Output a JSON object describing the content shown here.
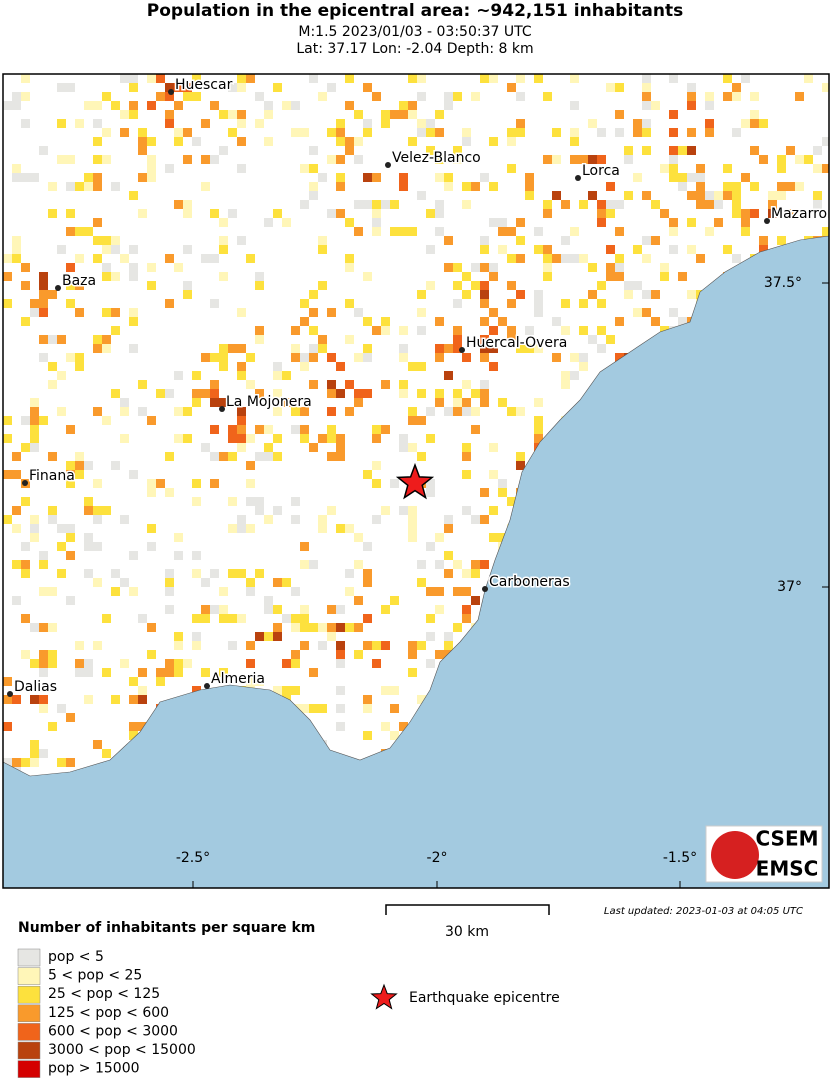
{
  "header": {
    "title": "Population in the epicentral area: ~942,151 inhabitants",
    "line1": "M:1.5 2023/01/03 - 03:50:37 UTC",
    "line2": "Lat: 37.17 Lon: -2.04 Depth: 8 km"
  },
  "map": {
    "cities": [
      "Huescar",
      "Velez-Blanco",
      "Lorca",
      "Mazarron",
      "Baza",
      "Huercal-Overa",
      "La Mojonera",
      "Finana",
      "Carboneras",
      "Dalias",
      "Almeria"
    ],
    "lat_labels": [
      "37.5°",
      "37°"
    ],
    "lon_labels": [
      "-2.5°",
      "-2°",
      "-1.5°"
    ],
    "sea_color": "#a3cae0",
    "logo": [
      "CSEM",
      "EMSC"
    ]
  },
  "scale": {
    "label": "30 km"
  },
  "updated": "Last updated: 2023-01-03 at 04:05 UTC",
  "legend": {
    "title": "Number of inhabitants per square km",
    "items": [
      {
        "label": "pop < 5",
        "color": "#e6e6e3"
      },
      {
        "label": "5 < pop < 25",
        "color": "#fff6b8"
      },
      {
        "label": "25 < pop < 125",
        "color": "#fde13d"
      },
      {
        "label": "125 < pop < 600",
        "color": "#f99a2c"
      },
      {
        "label": "600 < pop < 3000",
        "color": "#f0641b"
      },
      {
        "label": "3000 < pop < 15000",
        "color": "#b9420e"
      },
      {
        "label": "pop > 15000",
        "color": "#d40000"
      }
    ],
    "epicentre": "Earthquake epicentre",
    "epicentre_color": "#ee1c1c"
  }
}
